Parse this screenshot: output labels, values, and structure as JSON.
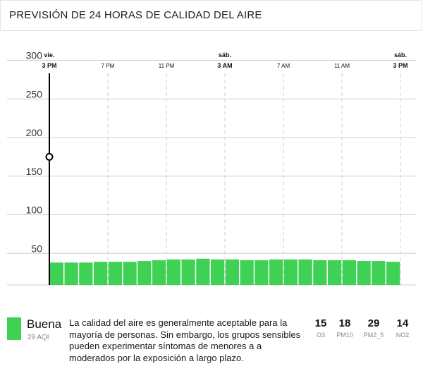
{
  "header": {
    "title": "PREVISIÓN DE 24 HORAS DE CALIDAD DEL AIRE"
  },
  "colors": {
    "bar": "#3fd153",
    "grid": "#cfcfcf",
    "axis": "#000000"
  },
  "chart_data": {
    "type": "bar",
    "x_ticks": [
      {
        "day": "vie.",
        "time": "3 PM",
        "major": true
      },
      {
        "day": "",
        "time": "7 PM",
        "major": false
      },
      {
        "day": "",
        "time": "11 PM",
        "major": false
      },
      {
        "day": "sáb.",
        "time": "3 AM",
        "major": true
      },
      {
        "day": "",
        "time": "7 AM",
        "major": false
      },
      {
        "day": "",
        "time": "11 AM",
        "major": false
      },
      {
        "day": "sáb.",
        "time": "3 PM",
        "major": true
      }
    ],
    "y_ticks": [
      50,
      100,
      150,
      200,
      250,
      300
    ],
    "ylim": [
      0,
      300
    ],
    "hours": 24,
    "values": [
      29,
      29,
      29,
      30,
      30,
      30,
      31,
      32,
      33,
      33,
      34,
      33,
      33,
      32,
      32,
      33,
      33,
      33,
      32,
      32,
      32,
      31,
      31,
      30
    ],
    "current_marker_value": 175,
    "grid": true
  },
  "footer": {
    "category": "Buena",
    "aqi": "29 AQI",
    "description": "La calidad del aire es generalmente aceptable para la mayoría de personas. Sin embargo, los grupos sensibles pueden experimentar síntomas de menores a a moderados por la exposición a largo plazo.",
    "pollutants": [
      {
        "value": "15",
        "name": "O3"
      },
      {
        "value": "18",
        "name": "PM10"
      },
      {
        "value": "29",
        "name": "PM2_5"
      },
      {
        "value": "14",
        "name": "NO2"
      }
    ]
  }
}
